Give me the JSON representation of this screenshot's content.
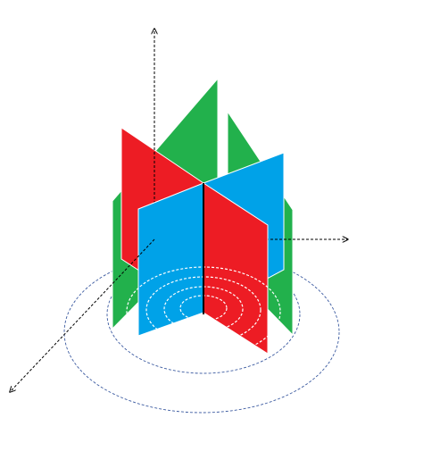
{
  "diagram": {
    "kind": "3d-isometric-planes-with-concentric-rings",
    "axes": [
      "vertical-axis",
      "horizontal-axis",
      "depth-axis"
    ],
    "axis_style": "dashed-arrow",
    "ring_count": 6,
    "planes": [
      {
        "name": "green-plane-left",
        "color": "#22b14c"
      },
      {
        "name": "green-plane-right",
        "color": "#22b14c"
      },
      {
        "name": "red-plane-back",
        "color": "#ed1c24"
      },
      {
        "name": "blue-plane-back",
        "color": "#00a2e8"
      },
      {
        "name": "blue-plane-front",
        "color": "#00a2e8"
      },
      {
        "name": "red-plane-front",
        "color": "#ed1c24"
      }
    ],
    "colors": {
      "green": "#22b14c",
      "red": "#ed1c24",
      "blue": "#00a2e8",
      "ring_stroke": "#3b5aa0",
      "inner_ring_stroke": "#ffffff",
      "axis": "#000000",
      "center_line": "#000000"
    }
  }
}
